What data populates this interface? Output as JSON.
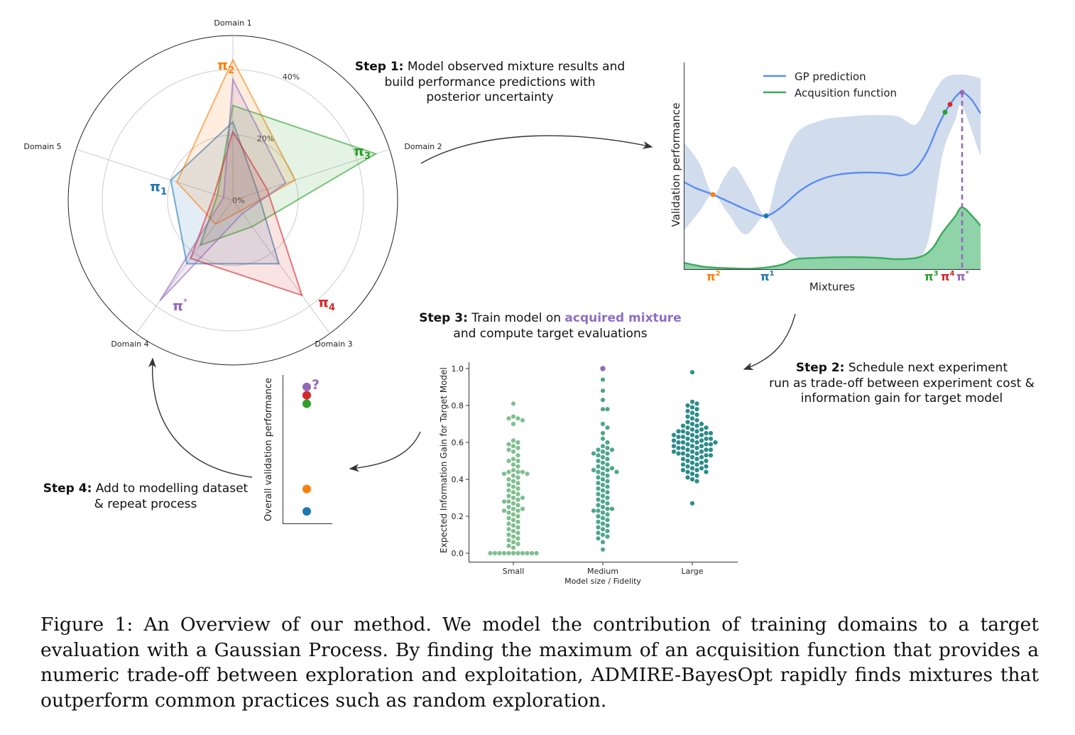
{
  "radar": {
    "axes": [
      "Domain 1",
      "Domain 2",
      "Domain 3",
      "Domain 4",
      "Domain 5"
    ],
    "ring_labels": [
      "0%",
      "20%",
      "40%"
    ],
    "policies": [
      {
        "name": "π",
        "sub": "1",
        "color": "#1f77b4",
        "values": [
          24,
          8,
          24,
          24,
          20
        ]
      },
      {
        "name": "π",
        "sub": "2",
        "color": "#ff7f0e",
        "values": [
          43,
          20,
          4,
          9,
          18
        ]
      },
      {
        "name": "π",
        "sub": "3",
        "color": "#2ca02c",
        "values": [
          29,
          46,
          10,
          17,
          5
        ]
      },
      {
        "name": "π",
        "sub": "4",
        "color": "#d62728",
        "values": [
          21,
          11,
          36,
          22,
          6
        ]
      },
      {
        "name": "π",
        "sup": "*",
        "color": "#9467bd",
        "values": [
          37,
          17,
          5,
          38,
          3
        ]
      }
    ]
  },
  "step1": {
    "bold": "Step 1:",
    "text_l1": " Model observed mixture results and",
    "text_l2": "build performance predictions with",
    "text_l3": "posterior uncertainty"
  },
  "step2": {
    "bold": "Step 2:",
    "text_l1": " Schedule next experiment",
    "text_l2": "run as trade-off between experiment cost &",
    "text_l3": "information gain for target model"
  },
  "step3": {
    "bold": "Step 3:",
    "text_l1": " Train model on ",
    "highlight": "acquired mixture",
    "text_l2": "and compute target evaluations"
  },
  "step4": {
    "bold": "Step 4:",
    "text_l1": " Add to modelling dataset",
    "text_l2": "& repeat process"
  },
  "gp_plot": {
    "ylabel": "Validation performance",
    "xlabel": "Mixtures",
    "legend": [
      "GP prediction",
      "Acqusition function"
    ],
    "colors": {
      "gp": "#5b8def",
      "acq": "#3aaa5c",
      "band": "#c9d6ea",
      "acq_fill": "#8fd3a8",
      "dash": "#9467bd"
    },
    "x_markers": [
      {
        "label": "π",
        "sup": "2",
        "color": "#ff7f0e"
      },
      {
        "label": "π",
        "sup": "1",
        "color": "#1f77b4"
      },
      {
        "label": "π",
        "sup": "3",
        "color": "#2ca02c"
      },
      {
        "label": "π",
        "sup": "4",
        "color": "#d62728"
      },
      {
        "label": "π",
        "sup": "*",
        "color": "#9467bd"
      }
    ]
  },
  "chart_data": {
    "type": "scatter",
    "title": "",
    "xlabel": "Model size / Fidelity",
    "ylabel": "Expected Information Gain for Target Model",
    "categories": [
      "Small",
      "Medium",
      "Large"
    ],
    "ylim": [
      0.0,
      1.0
    ],
    "yticks": [
      "0.0",
      "0.2",
      "0.4",
      "0.6",
      "0.8",
      "1.0"
    ],
    "colors": [
      "#7fbf8e",
      "#4ea68a",
      "#2b8c8a"
    ],
    "highlight": {
      "category": "Medium",
      "value": 1.0,
      "color": "#9467bd"
    },
    "series": [
      {
        "category": "Small",
        "values": [
          0.81,
          0.74,
          0.73,
          0.73,
          0.72,
          0.7,
          0.61,
          0.6,
          0.59,
          0.58,
          0.57,
          0.56,
          0.55,
          0.53,
          0.51,
          0.5,
          0.5,
          0.48,
          0.47,
          0.45,
          0.44,
          0.44,
          0.44,
          0.43,
          0.43,
          0.42,
          0.41,
          0.4,
          0.39,
          0.38,
          0.37,
          0.36,
          0.35,
          0.34,
          0.33,
          0.32,
          0.31,
          0.3,
          0.3,
          0.29,
          0.28,
          0.28,
          0.27,
          0.26,
          0.25,
          0.24,
          0.24,
          0.23,
          0.23,
          0.22,
          0.21,
          0.2,
          0.19,
          0.18,
          0.17,
          0.16,
          0.15,
          0.14,
          0.13,
          0.12,
          0.11,
          0.1,
          0.09,
          0.08,
          0.07,
          0.06,
          0.05,
          0.04,
          0.03,
          0.0,
          0.0,
          0.0,
          0.0,
          0.0,
          0.0,
          0.0,
          0.0,
          0.0,
          0.0,
          0.0
        ]
      },
      {
        "category": "Medium",
        "values": [
          0.94,
          0.88,
          0.83,
          0.78,
          0.78,
          0.7,
          0.68,
          0.65,
          0.62,
          0.6,
          0.58,
          0.57,
          0.56,
          0.56,
          0.55,
          0.54,
          0.54,
          0.53,
          0.52,
          0.51,
          0.5,
          0.49,
          0.48,
          0.47,
          0.46,
          0.46,
          0.45,
          0.45,
          0.44,
          0.44,
          0.43,
          0.42,
          0.41,
          0.4,
          0.39,
          0.38,
          0.37,
          0.36,
          0.35,
          0.34,
          0.33,
          0.32,
          0.31,
          0.3,
          0.29,
          0.28,
          0.27,
          0.26,
          0.25,
          0.24,
          0.24,
          0.23,
          0.23,
          0.22,
          0.21,
          0.2,
          0.19,
          0.18,
          0.17,
          0.16,
          0.15,
          0.14,
          0.13,
          0.12,
          0.11,
          0.1,
          0.09,
          0.08,
          0.06,
          0.02
        ]
      },
      {
        "category": "Large",
        "values": [
          0.98,
          0.82,
          0.81,
          0.8,
          0.79,
          0.78,
          0.77,
          0.76,
          0.75,
          0.74,
          0.73,
          0.72,
          0.71,
          0.7,
          0.7,
          0.69,
          0.69,
          0.68,
          0.68,
          0.67,
          0.67,
          0.66,
          0.66,
          0.66,
          0.65,
          0.65,
          0.65,
          0.64,
          0.64,
          0.64,
          0.63,
          0.63,
          0.63,
          0.62,
          0.62,
          0.62,
          0.61,
          0.61,
          0.61,
          0.6,
          0.6,
          0.6,
          0.6,
          0.59,
          0.59,
          0.59,
          0.58,
          0.58,
          0.58,
          0.57,
          0.57,
          0.57,
          0.56,
          0.56,
          0.56,
          0.55,
          0.55,
          0.55,
          0.54,
          0.54,
          0.54,
          0.53,
          0.53,
          0.53,
          0.52,
          0.52,
          0.51,
          0.51,
          0.5,
          0.5,
          0.49,
          0.49,
          0.48,
          0.48,
          0.47,
          0.47,
          0.46,
          0.46,
          0.45,
          0.45,
          0.44,
          0.44,
          0.43,
          0.42,
          0.41,
          0.4,
          0.39,
          0.27
        ]
      }
    ]
  },
  "overall_plot": {
    "ylabel": "Overall validation performance",
    "question": "?",
    "points": [
      {
        "value": 0.94,
        "color": "#9467bd"
      },
      {
        "value": 0.88,
        "color": "#d62728"
      },
      {
        "value": 0.82,
        "color": "#2ca02c"
      },
      {
        "value": 0.21,
        "color": "#ff7f0e"
      },
      {
        "value": 0.05,
        "color": "#1f77b4"
      }
    ]
  },
  "caption": "Figure 1: An Overview of our method. We model the contribution of training domains to a target evaluation with a Gaussian Process. By finding the maximum of an acquisition function that provides a numeric trade-off between exploration and exploitation, ADMIRE-BayesOpt rapidly finds mixtures that outperform common practices such as random exploration."
}
